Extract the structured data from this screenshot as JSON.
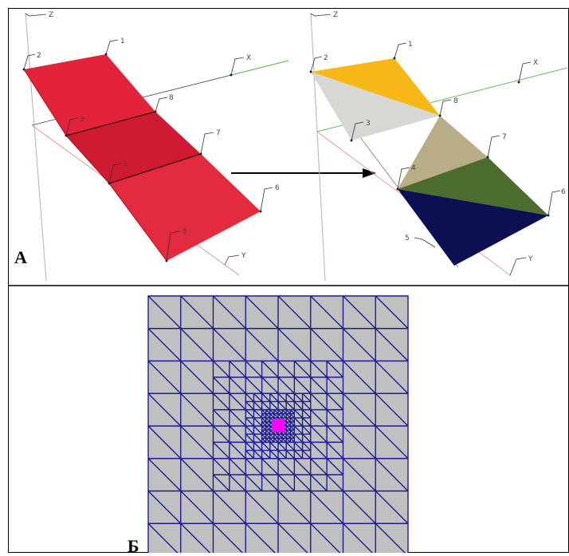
{
  "panel_a": {
    "label": "А",
    "axes": {
      "x": "X",
      "y": "Y",
      "z": "Z"
    },
    "node_labels": [
      "1",
      "2",
      "3",
      "4",
      "5",
      "6",
      "7",
      "8"
    ]
  },
  "panel_b": {
    "label": "Б"
  },
  "colors": {
    "surface_red": "#e2233a",
    "surface_red_mid": "#d11a2e",
    "tri_orange": "#f7b716",
    "tri_lightgray": "#d7d7d3",
    "tri_tan": "#b9ad87",
    "tri_green": "#4d6c2f",
    "tri_navy": "#0b1053",
    "mesh_fill": "#c0c0c0",
    "mesh_line": "#1c1c8f",
    "mesh_center": "#ff00ff",
    "axis_x": "#58b858",
    "axis_y": "#d88090",
    "axis_z": "#9aa0b8"
  }
}
